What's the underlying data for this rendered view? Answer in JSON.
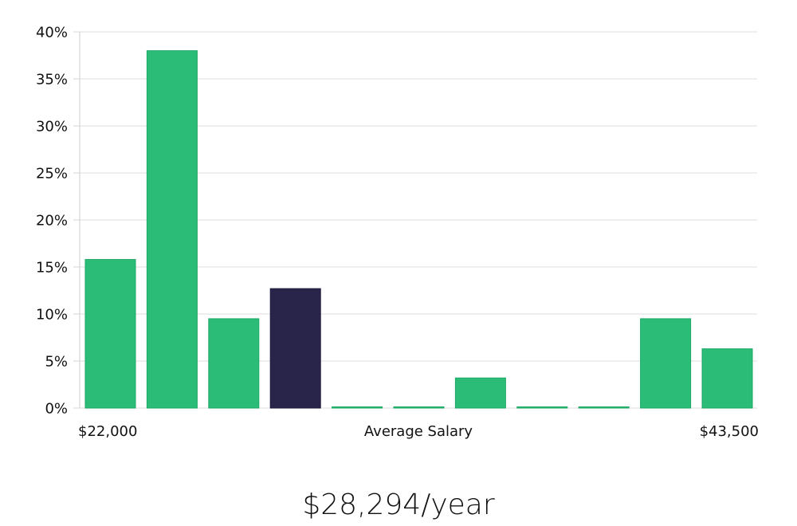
{
  "chart_data": {
    "type": "bar",
    "title": "",
    "xlabel": "",
    "ylabel": "",
    "yticks": [
      "0%",
      "5%",
      "10%",
      "15%",
      "20%",
      "25%",
      "30%",
      "35%",
      "40%"
    ],
    "ylim": [
      0,
      40
    ],
    "grid": true,
    "values": [
      15.8,
      38.0,
      9.5,
      12.7,
      0,
      0,
      3.2,
      0,
      0,
      9.5,
      6.3
    ],
    "highlight_index": 3,
    "x_labels": {
      "left": "$22,000",
      "center": "Average Salary",
      "right": "$43,500"
    },
    "colors": {
      "bar": "#2bbd77",
      "bar_edge": "#1fa866",
      "highlight": "#29254a",
      "grid": "#e3e3e3",
      "axis": "#d4d4d4",
      "text": "#111111"
    }
  },
  "salary": {
    "value": "$28,294/year"
  }
}
